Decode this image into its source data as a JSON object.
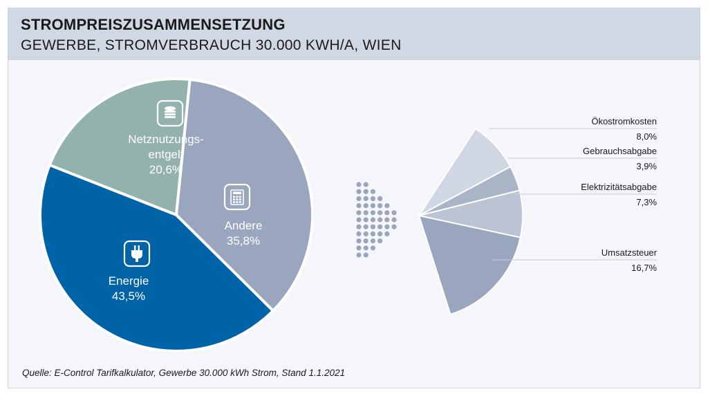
{
  "header": {
    "title": "STROMPREISZUSAMMENSETZUNG",
    "subtitle": "GEWERBE, STROMVERBRAUCH 30.000 KWH/A, WIEN"
  },
  "source": "Quelle: E-Control Tarifkalkulator, Gewerbe 30.000 kWh Strom, Stand 1.1.2021",
  "chart_data": [
    {
      "type": "pie",
      "title": "",
      "slices": [
        {
          "label_lines": [
            "Netznutzungs-",
            "entgelt"
          ],
          "value": 20.6,
          "value_label": "20,6%",
          "color": "#93b2ad",
          "icon": "coins-icon"
        },
        {
          "label_lines": [
            "Andere"
          ],
          "value": 35.8,
          "value_label": "35,8%",
          "color": "#99a6bd",
          "icon": "calculator-icon"
        },
        {
          "label_lines": [
            "Energie"
          ],
          "value": 43.5,
          "value_label": "43,5%",
          "color": "#0062a7",
          "icon": "plug-icon"
        }
      ]
    },
    {
      "type": "pie",
      "title": "",
      "breakdown_of": "Andere",
      "slices": [
        {
          "label": "Ökostromkosten",
          "value": 8.0,
          "value_label": "8,0%",
          "color": "#d0d6e2"
        },
        {
          "label": "Gebrauchsabgabe",
          "value": 3.9,
          "value_label": "3,9%",
          "color": "#aab4c7"
        },
        {
          "label": "Elektrizitätsabgabe",
          "value": 7.3,
          "value_label": "7,3%",
          "color": "#bcc4d4"
        },
        {
          "label": "Umsatzsteuer",
          "value": 16.7,
          "value_label": "16,7%",
          "color": "#99a6bd"
        }
      ]
    }
  ],
  "colors": {
    "header_bg": "#d0d8e4",
    "panel_bg": "#f4f6fa",
    "arrow_dots": "#99a6bd"
  },
  "arrow_icon": "dotted-arrow-right-icon"
}
